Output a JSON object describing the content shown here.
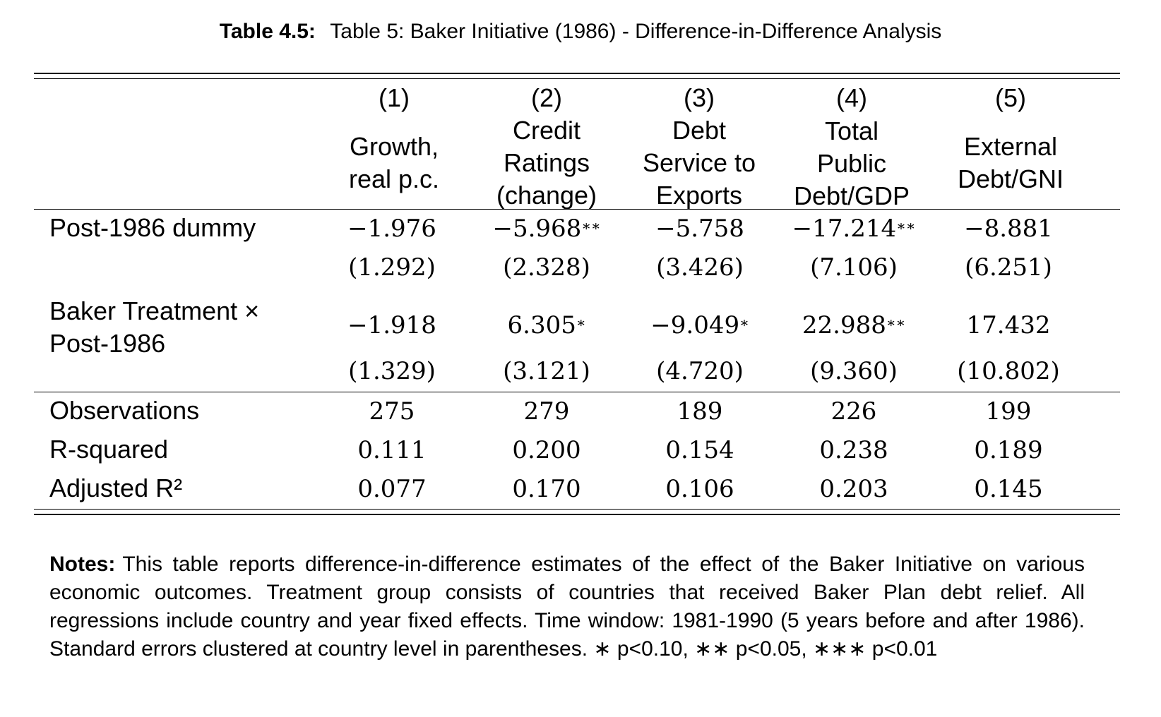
{
  "caption": {
    "label": "Table 4.5:",
    "text": "Table 5: Baker Initiative (1986) - Difference-in-Difference Analysis"
  },
  "columns": [
    {
      "number": "(1)",
      "header": [
        "Growth,",
        "real p.c."
      ]
    },
    {
      "number": "(2)",
      "header": [
        "Credit",
        "Ratings",
        "(change)"
      ]
    },
    {
      "number": "(3)",
      "header": [
        "Debt",
        "Service to",
        "Exports"
      ]
    },
    {
      "number": "(4)",
      "header": [
        "Total",
        "Public",
        "Debt/GDP"
      ]
    },
    {
      "number": "(5)",
      "header": [
        "External",
        "Debt/GNI"
      ]
    }
  ],
  "rows": [
    {
      "label": "Post-1986 dummy",
      "coefficients": [
        {
          "value": "−1.976",
          "stars": ""
        },
        {
          "value": "−5.968",
          "stars": "∗∗"
        },
        {
          "value": "−5.758",
          "stars": ""
        },
        {
          "value": "−17.214",
          "stars": "∗∗"
        },
        {
          "value": "−8.881",
          "stars": ""
        }
      ],
      "std_errors": [
        "(1.292)",
        "(2.328)",
        "(3.426)",
        "(7.106)",
        "(6.251)"
      ]
    },
    {
      "label_line1": "Baker Treatment ×",
      "label_line2": "Post-1986",
      "coefficients": [
        {
          "value": "−1.918",
          "stars": ""
        },
        {
          "value": "6.305",
          "stars": "∗"
        },
        {
          "value": "−9.049",
          "stars": "∗"
        },
        {
          "value": "22.988",
          "stars": "∗∗"
        },
        {
          "value": "17.432",
          "stars": ""
        }
      ],
      "std_errors": [
        "(1.329)",
        "(3.121)",
        "(4.720)",
        "(9.360)",
        "(10.802)"
      ]
    }
  ],
  "stats": [
    {
      "label": "Observations",
      "values": [
        "275",
        "279",
        "189",
        "226",
        "199"
      ]
    },
    {
      "label": "R-squared",
      "values": [
        "0.111",
        "0.200",
        "0.154",
        "0.238",
        "0.189"
      ]
    },
    {
      "label": "Adjusted R²",
      "values": [
        "0.077",
        "0.170",
        "0.106",
        "0.203",
        "0.145"
      ]
    }
  ],
  "notes": {
    "label": "Notes:",
    "text": "This table reports difference-in-difference estimates of the effect of the Baker Initiative on various economic outcomes. Treatment group consists of countries that received Baker Plan debt relief. All regressions include country and year fixed effects. Time window: 1981-1990 (5 years before and after 1986). Standard errors clustered at country level in parentheses. ∗ p<0.10, ∗∗ p<0.05, ∗∗∗ p<0.01"
  }
}
